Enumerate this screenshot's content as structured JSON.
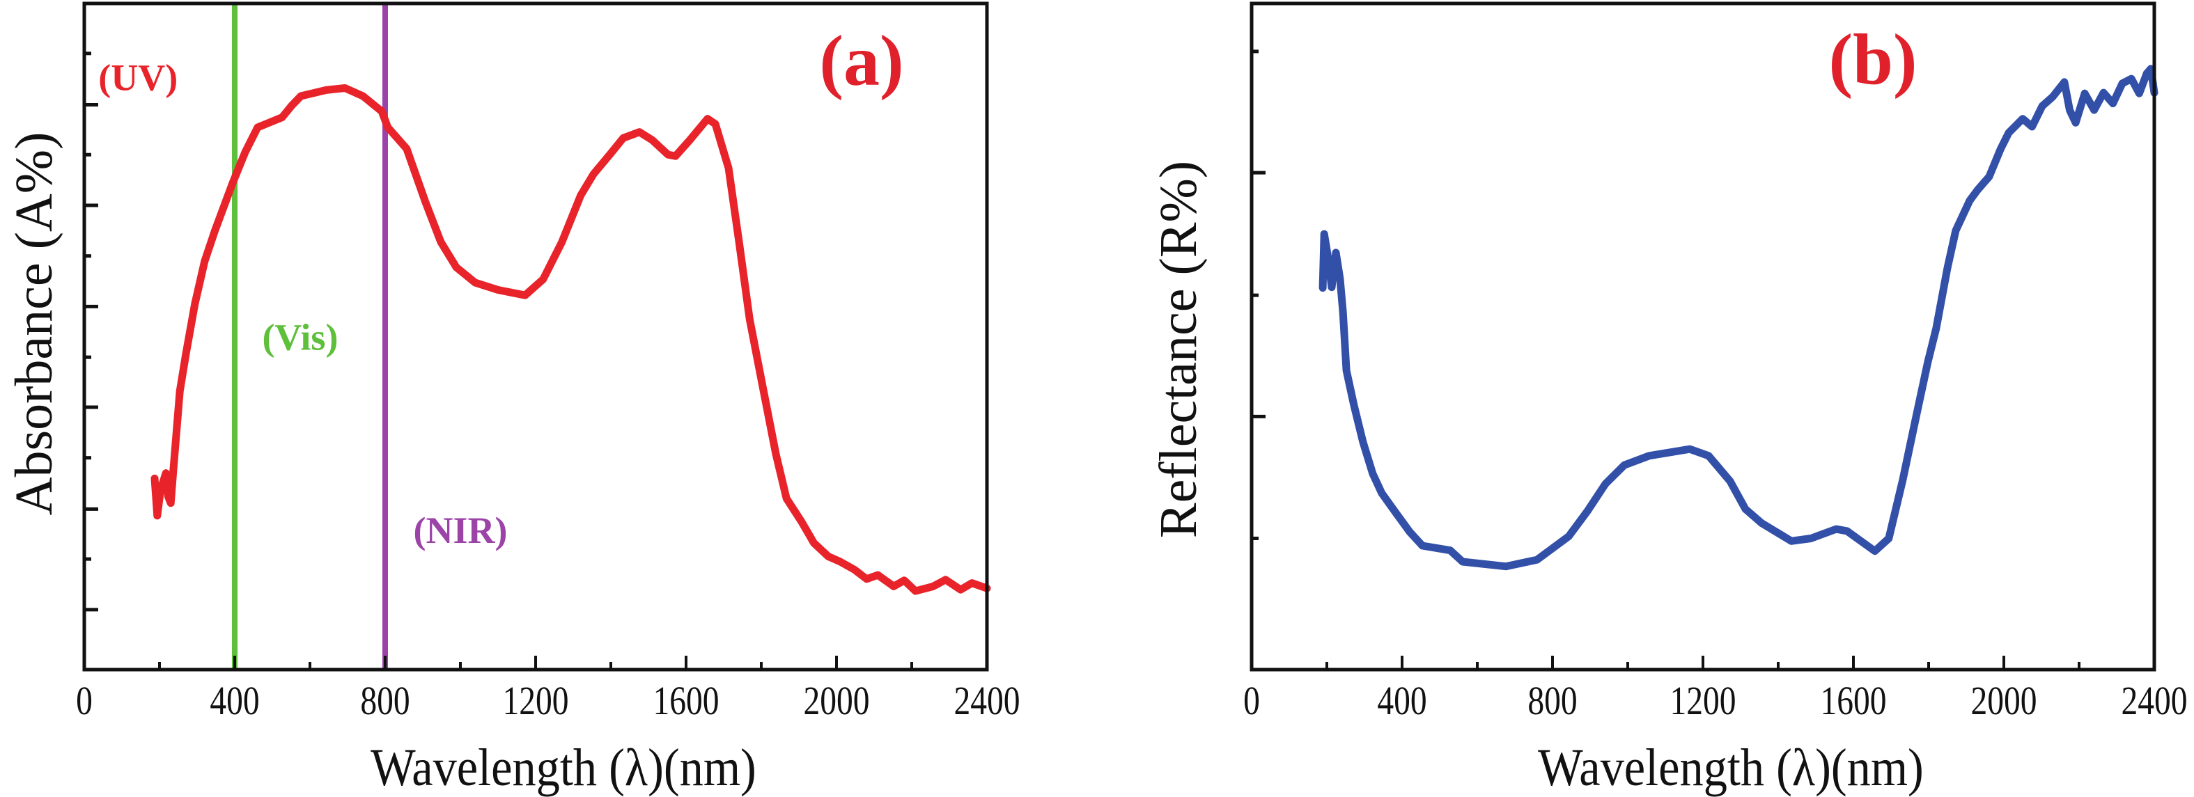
{
  "chart_data": [
    {
      "id": "a",
      "type": "line",
      "panel_label": "(a)",
      "xlabel": "Wavelength (λ)(nm)",
      "ylabel": "Absorbance (A%)",
      "xlim": [
        0,
        2400
      ],
      "ylim": [
        0,
        100
      ],
      "y_units_note": "no numeric y tick labels shown; y values are relative (percent of axis range)",
      "x_ticks": [
        0,
        400,
        800,
        1200,
        1600,
        2000,
        2400
      ],
      "x_tick_labels": [
        "0",
        "400",
        "800",
        "1200",
        "1600",
        "2000",
        "2400"
      ],
      "x_minor_ticks": [
        200,
        600,
        1000,
        1400,
        1800,
        2200
      ],
      "y_major_ticks": [
        9.0,
        24.1,
        39.4,
        54.5,
        69.7,
        84.8
      ],
      "y_minor_ticks": [
        16.6,
        31.8,
        46.9,
        62.1,
        77.3,
        92.5
      ],
      "grid": false,
      "vlines": [
        {
          "x": 400,
          "color": "#5dbf3a",
          "name": "uv-vis-boundary"
        },
        {
          "x": 800,
          "color": "#9c43a8",
          "name": "vis-nir-boundary"
        }
      ],
      "annotations": [
        {
          "text": "(UV)",
          "x": 143,
          "y": 87,
          "color": "#e8232a"
        },
        {
          "text": "(Vis)",
          "x": 574,
          "y": 48,
          "color": "#5dbf3a"
        },
        {
          "text": "(NIR)",
          "x": 1000,
          "y": 19,
          "color": "#9c43a8"
        }
      ],
      "series": [
        {
          "name": "Absorbance",
          "color": "#e8232a",
          "x": [
            187,
            194,
            203,
            217,
            223,
            230,
            237,
            254,
            270,
            294,
            320,
            348,
            394,
            428,
            461,
            526,
            552,
            576,
            643,
            693,
            741,
            791,
            807,
            857,
            907,
            948,
            989,
            1039,
            1100,
            1172,
            1220,
            1270,
            1320,
            1354,
            1400,
            1433,
            1476,
            1510,
            1552,
            1572,
            1610,
            1657,
            1678,
            1713,
            1741,
            1769,
            1804,
            1839,
            1867,
            1907,
            1940,
            1978,
            2010,
            2048,
            2080,
            2110,
            2152,
            2180,
            2210,
            2257,
            2290,
            2330,
            2360,
            2400
          ],
          "y": [
            28.7,
            23.1,
            27.0,
            29.5,
            26.0,
            25.0,
            30.1,
            41.8,
            47.3,
            54.9,
            61.3,
            66.0,
            73.0,
            77.7,
            81.4,
            82.9,
            84.7,
            86.1,
            87.0,
            87.3,
            86.1,
            83.8,
            81.4,
            78.2,
            70.2,
            64.2,
            60.4,
            58.1,
            57.0,
            56.2,
            58.6,
            64.2,
            71.2,
            74.4,
            77.5,
            79.8,
            80.7,
            79.5,
            77.3,
            77.1,
            79.5,
            82.7,
            81.9,
            75.3,
            64.2,
            52.6,
            42.4,
            32.3,
            25.7,
            22.2,
            19.0,
            17.0,
            16.2,
            15.0,
            13.6,
            14.2,
            12.5,
            13.4,
            11.8,
            12.5,
            13.5,
            12.0,
            13.0,
            12.2
          ]
        }
      ]
    },
    {
      "id": "b",
      "type": "line",
      "panel_label": "(b)",
      "xlabel": "Wavelength (λ)(nm)",
      "ylabel": "Reflectance (R%)",
      "xlim": [
        0,
        2400
      ],
      "ylim": [
        0,
        100
      ],
      "y_units_note": "no numeric y tick labels shown; y values are relative (percent of axis range)",
      "x_ticks": [
        0,
        400,
        800,
        1200,
        1600,
        2000,
        2400
      ],
      "x_tick_labels": [
        "0",
        "400",
        "800",
        "1200",
        "1600",
        "2000",
        "2400"
      ],
      "x_minor_ticks": [
        200,
        600,
        1000,
        1400,
        1800,
        2200
      ],
      "y_major_ticks": [
        38.0,
        74.6
      ],
      "y_minor_ticks": [
        19.7,
        56.2,
        92.8
      ],
      "grid": false,
      "vlines": [],
      "annotations": [],
      "series": [
        {
          "name": "Reflectance",
          "color": "#3350a8",
          "x": [
            189,
            193,
            202,
            213,
            224,
            235,
            243,
            252,
            272,
            296,
            322,
            346,
            380,
            420,
            454,
            528,
            561,
            676,
            759,
            843,
            893,
            941,
            991,
            1057,
            1165,
            1215,
            1272,
            1313,
            1356,
            1435,
            1487,
            1554,
            1583,
            1657,
            1694,
            1731,
            1769,
            1798,
            1820,
            1850,
            1872,
            1909,
            1930,
            1961,
            1991,
            2013,
            2050,
            2075,
            2102,
            2130,
            2161,
            2175,
            2191,
            2215,
            2240,
            2265,
            2290,
            2315,
            2339,
            2360,
            2380,
            2391,
            2400
          ],
          "y": [
            57.3,
            65.4,
            62.3,
            57.4,
            62.6,
            58.7,
            53.6,
            44.9,
            39.7,
            34.2,
            29.4,
            26.5,
            23.8,
            20.7,
            18.6,
            17.9,
            16.2,
            15.5,
            16.5,
            20.0,
            23.8,
            27.9,
            30.7,
            32.1,
            33.1,
            32.1,
            28.3,
            24.1,
            22.0,
            19.3,
            19.7,
            21.1,
            20.8,
            17.8,
            19.7,
            28.4,
            38.6,
            46.2,
            51.2,
            60.3,
            65.9,
            70.4,
            72.0,
            74.0,
            78.1,
            80.6,
            82.7,
            81.5,
            84.6,
            86.0,
            88.2,
            84.0,
            82.1,
            86.5,
            84.0,
            86.6,
            85.0,
            88.0,
            88.7,
            86.5,
            89.5,
            90.2,
            86.6
          ]
        }
      ]
    }
  ]
}
